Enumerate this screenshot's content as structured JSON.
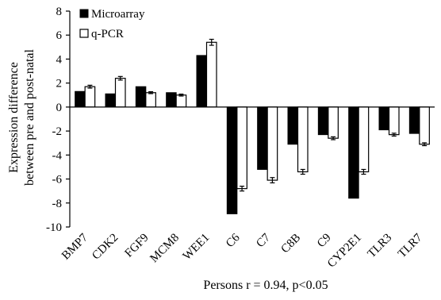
{
  "chart_data": {
    "type": "bar",
    "categories": [
      "BMP7",
      "CDK2",
      "FGF9",
      "MCM8",
      "WEE1",
      "C6",
      "C7",
      "C8B",
      "C9",
      "CYP2E1",
      "TLR3",
      "TLR7"
    ],
    "series": [
      {
        "name": "Microarray",
        "color": "#000000",
        "values": [
          1.3,
          1.1,
          1.7,
          1.2,
          4.3,
          -8.9,
          -5.2,
          -3.1,
          -2.3,
          -7.6,
          -1.9,
          -2.2
        ]
      },
      {
        "name": "q-PCR",
        "color": "#ffffff",
        "values": [
          1.7,
          2.4,
          1.2,
          1.0,
          5.4,
          -6.8,
          -6.1,
          -5.4,
          -2.6,
          -5.4,
          -2.3,
          -3.1
        ],
        "errors": [
          0.12,
          0.15,
          0.08,
          0.08,
          0.25,
          0.2,
          0.22,
          0.2,
          0.12,
          0.2,
          0.12,
          0.12
        ]
      }
    ],
    "ylabel_line1": "Expression difference",
    "ylabel_line2": "between pre and post-natal",
    "xlabel": "Persons r = 0.94, p<0.05",
    "ylim": [
      -10,
      8
    ],
    "yticks": [
      8,
      6,
      4,
      2,
      0,
      -2,
      -4,
      -6,
      -8,
      -10
    ],
    "legend_position": "top-left",
    "grid": false
  }
}
